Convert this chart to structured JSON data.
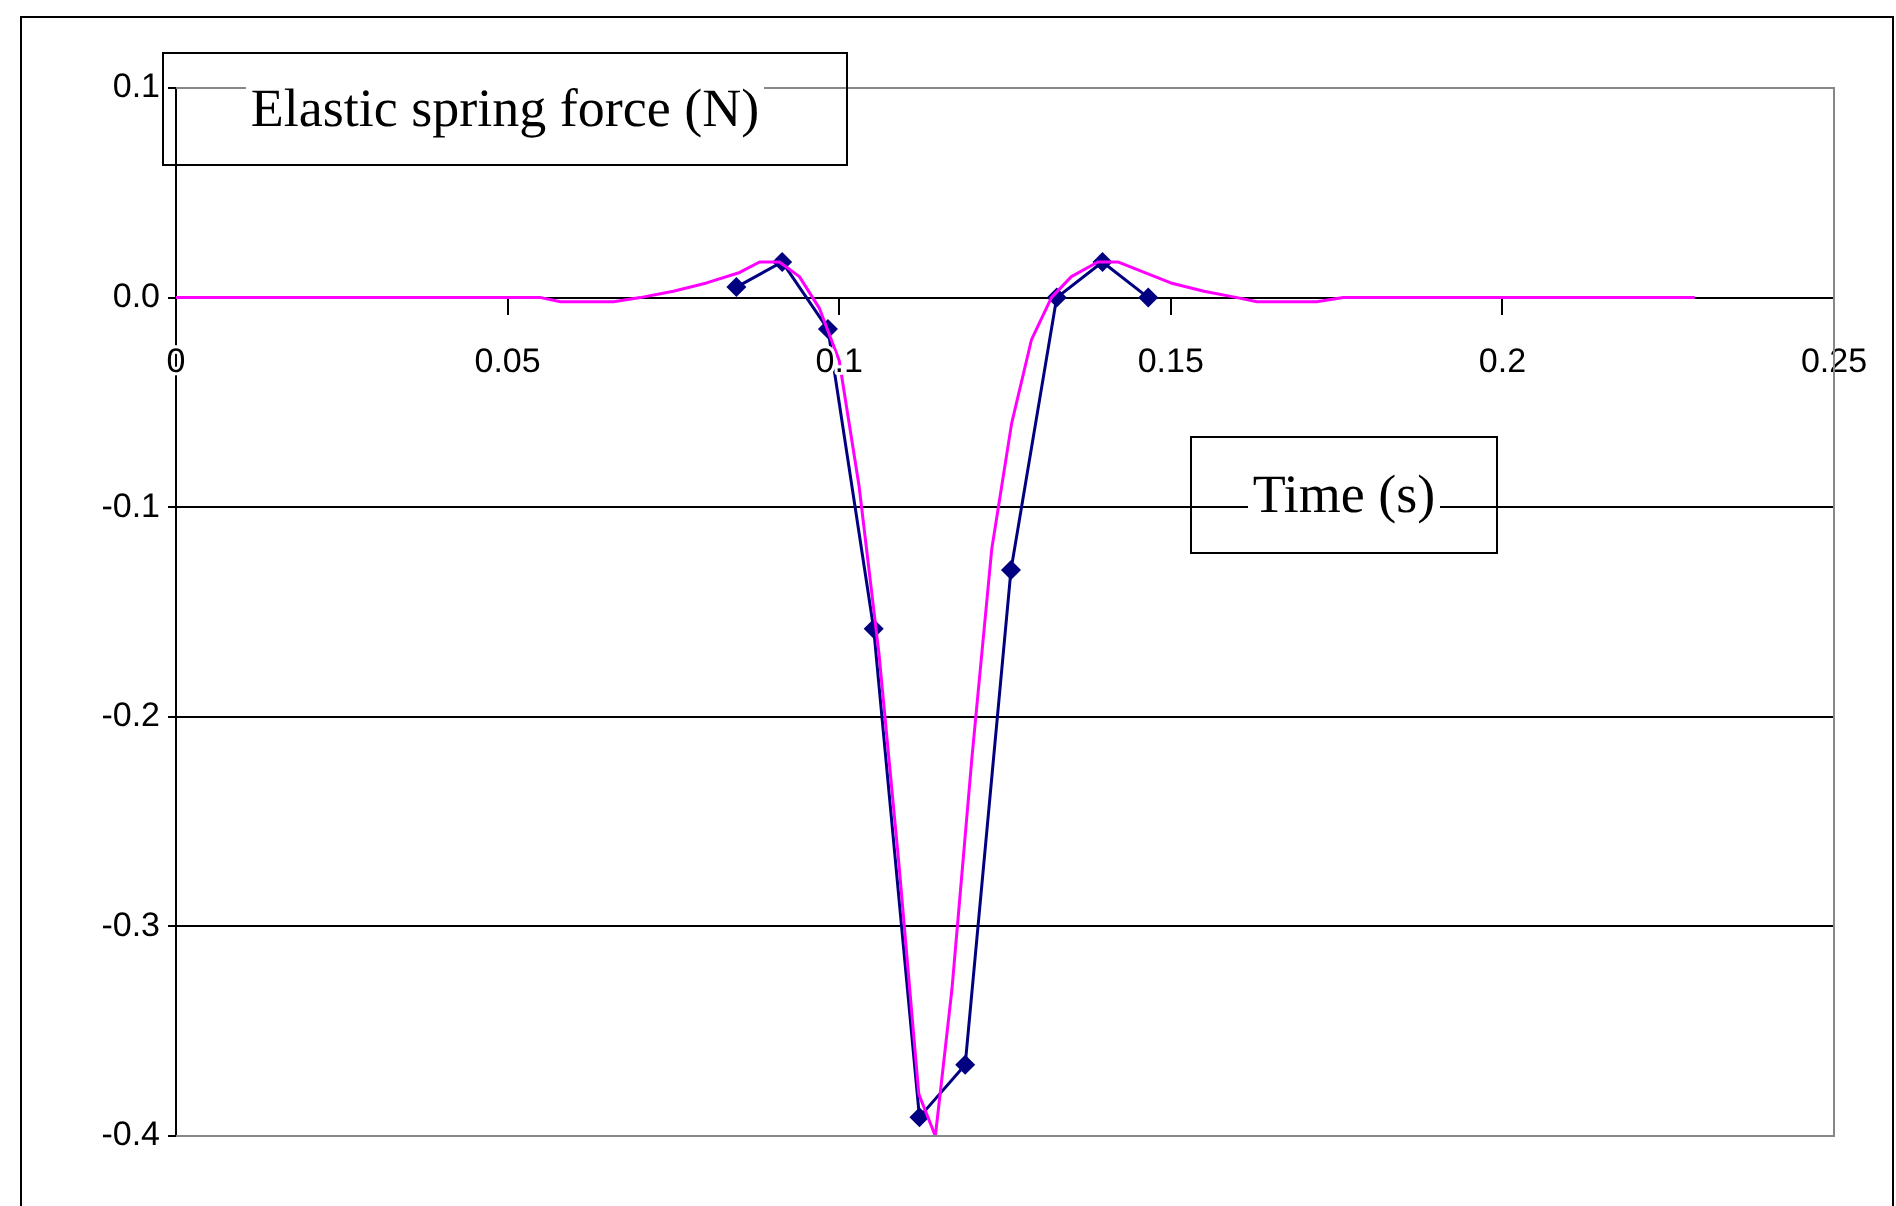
{
  "chart_data": {
    "type": "line",
    "xlabel": "Time (s)",
    "ylabel": "Elastic spring force (N)",
    "xlim": [
      0,
      0.25
    ],
    "xticks": [
      0,
      0.05,
      {
        "value": 0.1,
        "label": "0.1"
      },
      0.15,
      {
        "value": 0.2,
        "label": "0.2"
      },
      0.25
    ],
    "ylim": [
      -0.4,
      0.1
    ],
    "yticks": [
      {
        "value": -0.4,
        "label": "-0.4"
      },
      {
        "value": -0.3,
        "label": "-0.3"
      },
      {
        "value": -0.2,
        "label": "-0.2"
      },
      {
        "value": -0.1,
        "label": "-0.1"
      },
      {
        "value": 0,
        "label": "0.0"
      },
      0.1
    ],
    "grid": "y",
    "legend": false,
    "series": [
      {
        "color": "#ff00ff",
        "marker": "none",
        "x": [
          0,
          0.055,
          0.058,
          0.066,
          0.07,
          0.075,
          0.08,
          0.085,
          0.088,
          0.091,
          0.094,
          0.097,
          0.1,
          0.103,
          0.106,
          0.109,
          0.112,
          0.1145,
          0.117,
          0.12,
          0.123,
          0.126,
          0.129,
          0.132,
          0.135,
          0.139,
          0.142,
          0.146,
          0.15,
          0.155,
          0.16,
          0.163,
          0.172,
          0.176,
          0.229
        ],
        "values": [
          0,
          0,
          -0.002,
          -0.002,
          0,
          0.003,
          0.007,
          0.012,
          0.017,
          0.017,
          0.01,
          -0.005,
          -0.03,
          -0.09,
          -0.17,
          -0.27,
          -0.38,
          -0.4,
          -0.33,
          -0.22,
          -0.12,
          -0.06,
          -0.02,
          0,
          0.01,
          0.017,
          0.017,
          0.012,
          0.007,
          0.003,
          0,
          -0.002,
          -0.002,
          0,
          0
        ]
      },
      {
        "color": "#000080",
        "marker": "diamond",
        "x": [
          0.0845,
          0.0914,
          0.0983,
          0.1052,
          0.1121,
          0.119,
          0.1259,
          0.1328,
          0.1397,
          0.1466
        ],
        "values": [
          0.005,
          0.017,
          -0.015,
          -0.158,
          -0.391,
          -0.366,
          -0.13,
          0,
          0.017,
          0
        ]
      }
    ]
  }
}
